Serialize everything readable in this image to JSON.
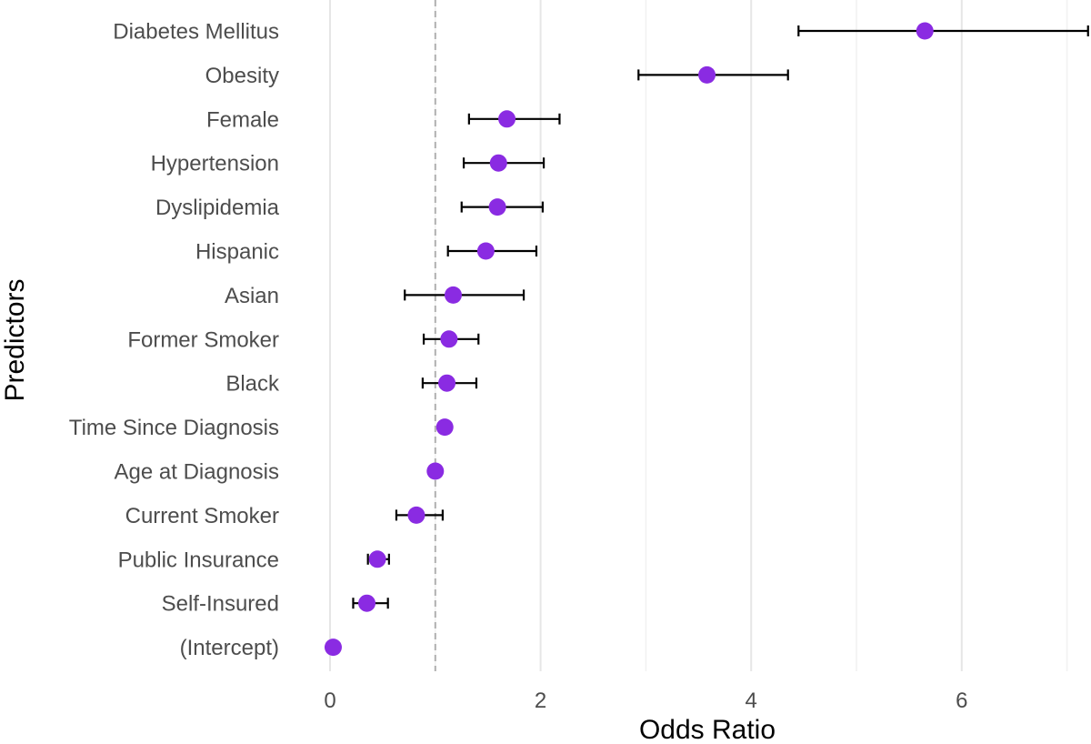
{
  "chart_data": {
    "type": "scatter",
    "subtype": "forest-plot",
    "title": "",
    "xlabel": "Odds Ratio",
    "ylabel": "Predictors",
    "xlim": [
      0,
      7.2
    ],
    "xticks": [
      0,
      2,
      4,
      6
    ],
    "xtick_labels": [
      "0",
      "2",
      "4",
      "6"
    ],
    "reference_line": 1,
    "grid": "vertical",
    "colors": {
      "point": "#8a2be2",
      "errorbar": "#000000",
      "grid_major": "#e6e6e6",
      "grid_minor": "#f2f2f2",
      "reference": "#b0b0b0",
      "tick_text": "#4d4d4d"
    },
    "predictors": [
      {
        "label": "Diabetes Mellitus",
        "or": 5.65,
        "lo": 4.45,
        "hi": 7.2
      },
      {
        "label": "Obesity",
        "or": 3.58,
        "lo": 2.93,
        "hi": 4.35
      },
      {
        "label": "Female",
        "or": 1.68,
        "lo": 1.32,
        "hi": 2.18
      },
      {
        "label": "Hypertension",
        "or": 1.6,
        "lo": 1.27,
        "hi": 2.03
      },
      {
        "label": "Dyslipidemia",
        "or": 1.59,
        "lo": 1.25,
        "hi": 2.02
      },
      {
        "label": "Hispanic",
        "or": 1.48,
        "lo": 1.12,
        "hi": 1.96
      },
      {
        "label": "Asian",
        "or": 1.17,
        "lo": 0.71,
        "hi": 1.84
      },
      {
        "label": "Former Smoker",
        "or": 1.13,
        "lo": 0.89,
        "hi": 1.41
      },
      {
        "label": "Black",
        "or": 1.11,
        "lo": 0.88,
        "hi": 1.39
      },
      {
        "label": "Time Since Diagnosis",
        "or": 1.09,
        "lo": 1.05,
        "hi": 1.13
      },
      {
        "label": "Age at Diagnosis",
        "or": 1.0,
        "lo": 0.98,
        "hi": 1.02
      },
      {
        "label": "Current Smoker",
        "or": 0.82,
        "lo": 0.63,
        "hi": 1.07
      },
      {
        "label": "Public Insurance",
        "or": 0.45,
        "lo": 0.36,
        "hi": 0.56
      },
      {
        "label": "Self-Insured",
        "or": 0.35,
        "lo": 0.22,
        "hi": 0.55
      },
      {
        "label": "(Intercept)",
        "or": 0.03,
        "lo": 0.02,
        "hi": 0.05
      }
    ]
  }
}
